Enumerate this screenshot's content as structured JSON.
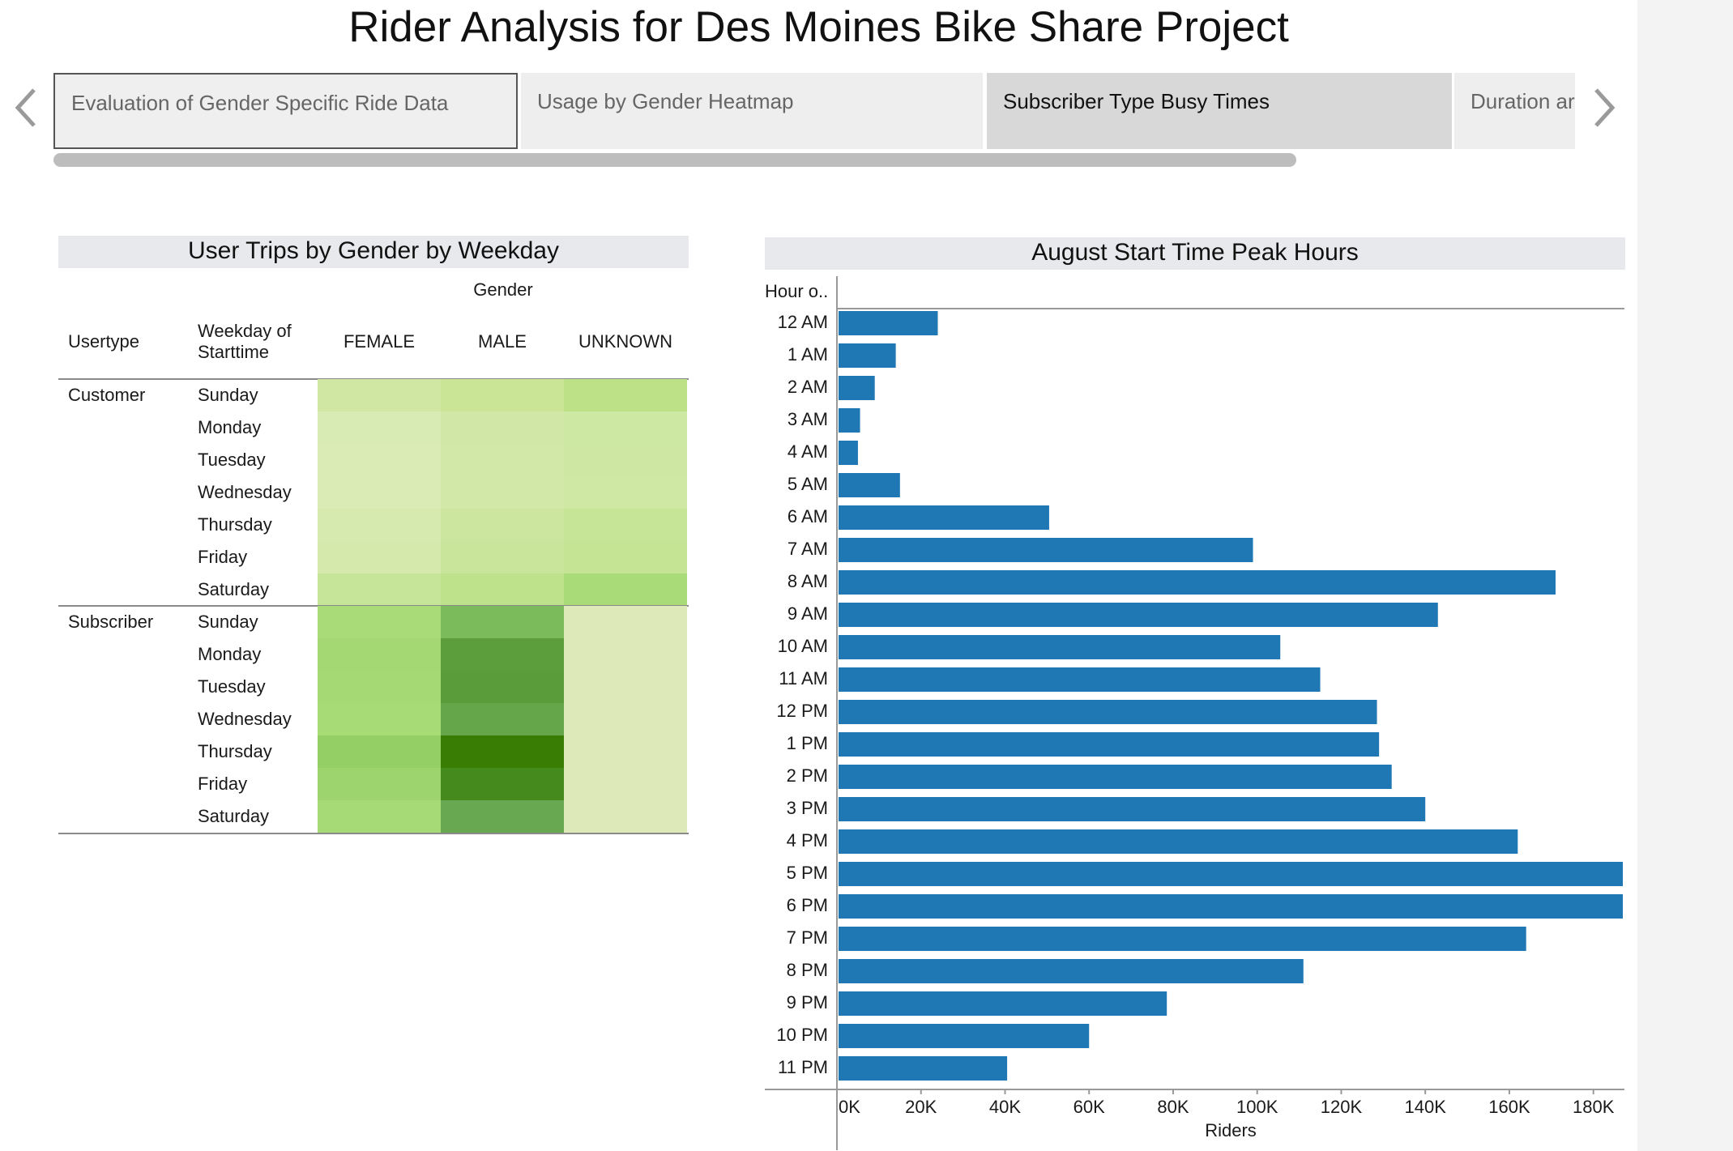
{
  "page_title": "Rider Analysis for Des Moines Bike Share Project",
  "tabs": [
    {
      "label": "Evaluation of Gender Specific Ride Data",
      "state": "selected"
    },
    {
      "label": "Usage by Gender Heatmap",
      "state": "normal"
    },
    {
      "label": "Subscriber Type Busy Times",
      "state": "active"
    },
    {
      "label": "Duration ar",
      "state": "normal"
    }
  ],
  "icons": {
    "prev": "chevron-left-icon",
    "next": "chevron-right-icon"
  },
  "heatmap": {
    "title": "User Trips by Gender by Weekday",
    "column_group_label": "Gender",
    "row_headers": [
      "Usertype",
      "Weekday of Starttime"
    ],
    "columns": [
      "FEMALE",
      "MALE",
      "UNKNOWN"
    ],
    "groups": [
      {
        "usertype": "Customer",
        "rows": [
          {
            "weekday": "Sunday",
            "colors": [
              "#cfe7a2",
              "#c9e595",
              "#bde187"
            ]
          },
          {
            "weekday": "Monday",
            "colors": [
              "#d9ebb4",
              "#d1e7a8",
              "#cde8a2"
            ]
          },
          {
            "weekday": "Tuesday",
            "colors": [
              "#daebb5",
              "#d2e8a8",
              "#cee8a3"
            ]
          },
          {
            "weekday": "Wednesday",
            "colors": [
              "#daebb5",
              "#d2e8a8",
              "#cfe8a4"
            ]
          },
          {
            "weekday": "Thursday",
            "colors": [
              "#d6e9ae",
              "#cce6a0",
              "#c7e597"
            ]
          },
          {
            "weekday": "Friday",
            "colors": [
              "#d5e9ac",
              "#c9e59b",
              "#c5e594"
            ]
          },
          {
            "weekday": "Saturday",
            "colors": [
              "#c7e598",
              "#bde28b",
              "#a9db79"
            ]
          }
        ]
      },
      {
        "usertype": "Subscriber",
        "rows": [
          {
            "weekday": "Sunday",
            "colors": [
              "#a9dc79",
              "#7cbb5b",
              "#dde9b9"
            ]
          },
          {
            "weekday": "Monday",
            "colors": [
              "#a3d873",
              "#5c9e3c",
              "#dde9b9"
            ]
          },
          {
            "weekday": "Tuesday",
            "colors": [
              "#a4d974",
              "#5a9c39",
              "#dde9b9"
            ]
          },
          {
            "weekday": "Wednesday",
            "colors": [
              "#a7db75",
              "#66a64a",
              "#dde9b9"
            ]
          },
          {
            "weekday": "Thursday",
            "colors": [
              "#93cf65",
              "#3a7d04",
              "#dde9b9"
            ]
          },
          {
            "weekday": "Friday",
            "colors": [
              "#9dd46d",
              "#458a1c",
              "#dde9b9"
            ]
          },
          {
            "weekday": "Saturday",
            "colors": [
              "#a6da76",
              "#67a850",
              "#dde9b9"
            ]
          }
        ]
      }
    ]
  },
  "chart_data": {
    "type": "bar",
    "orientation": "horizontal",
    "title": "August Start Time Peak Hours",
    "row_header": "Hour o..",
    "xlabel": "Riders",
    "xlim": [
      0,
      187000
    ],
    "xticks": [
      "0K",
      "20K",
      "40K",
      "60K",
      "80K",
      "100K",
      "120K",
      "140K",
      "160K",
      "180K"
    ],
    "xtick_values": [
      0,
      20000,
      40000,
      60000,
      80000,
      100000,
      120000,
      140000,
      160000,
      180000
    ],
    "bar_color": "#1f77b4",
    "categories": [
      "12 AM",
      "1 AM",
      "2 AM",
      "3 AM",
      "4 AM",
      "5 AM",
      "6 AM",
      "7 AM",
      "8 AM",
      "9 AM",
      "10 AM",
      "11 AM",
      "12 PM",
      "1 PM",
      "2 PM",
      "3 PM",
      "4 PM",
      "5 PM",
      "6 PM",
      "7 PM",
      "8 PM",
      "9 PM",
      "10 PM",
      "11 PM"
    ],
    "values": [
      24000,
      14000,
      9000,
      5500,
      5000,
      15000,
      50500,
      99000,
      171000,
      143000,
      105500,
      115000,
      128500,
      129000,
      132000,
      140000,
      162000,
      187000,
      187000,
      164000,
      111000,
      78500,
      60000,
      40500
    ]
  }
}
